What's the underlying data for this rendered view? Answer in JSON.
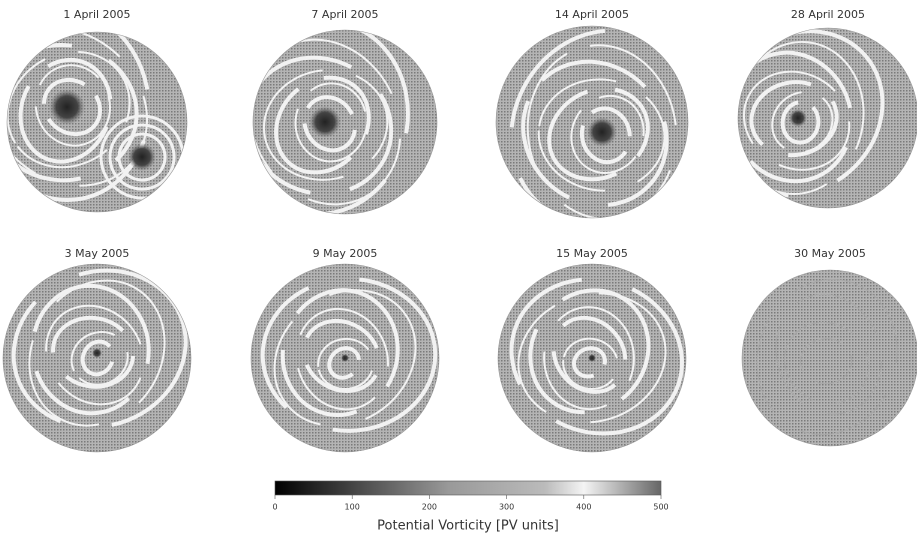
{
  "panels": [
    {
      "title": "1 April 2005"
    },
    {
      "title": "7 April 2005"
    },
    {
      "title": "14 April 2005"
    },
    {
      "title": "28 April 2005"
    },
    {
      "title": "3 May 2005"
    },
    {
      "title": "9 May 2005"
    },
    {
      "title": "15 May 2005"
    },
    {
      "title": "30 May 2005"
    }
  ],
  "colorbar": {
    "label": "Potential Vorticity [PV units]",
    "range": [
      0,
      500
    ],
    "ticks": [
      0,
      100,
      200,
      300,
      400,
      500
    ]
  }
}
